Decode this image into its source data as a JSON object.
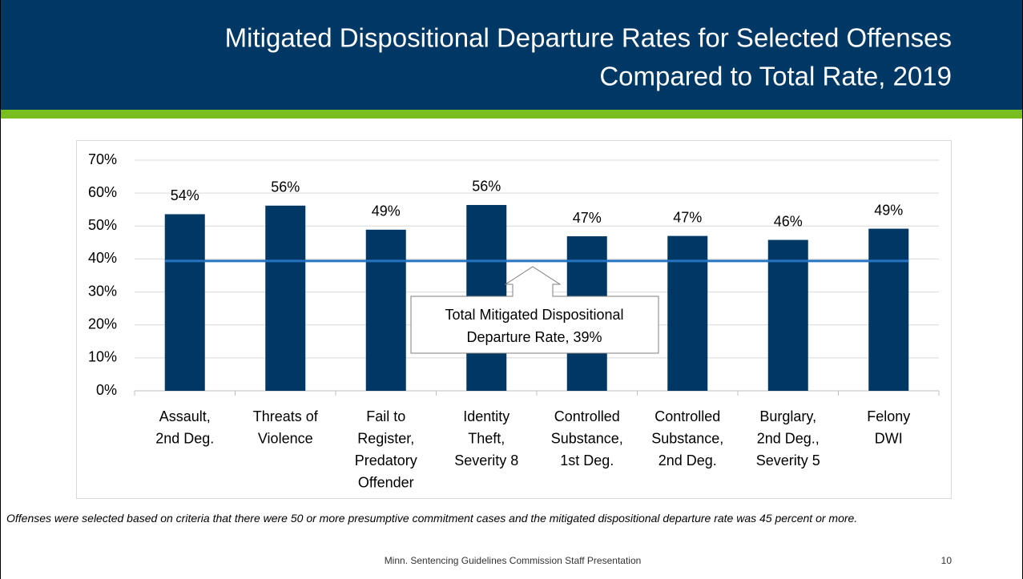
{
  "title_lines": [
    "Mitigated Dispositional Departure Rates for Selected Offenses",
    "Compared to Total Rate, 2019"
  ],
  "chart_data": {
    "type": "bar",
    "categories": [
      [
        "Assault,",
        "2nd Deg."
      ],
      [
        "Threats of",
        "Violence"
      ],
      [
        "Fail to",
        "Register,",
        "Predatory",
        "Offender"
      ],
      [
        "Identity",
        "Theft,",
        "Severity 8"
      ],
      [
        "Controlled",
        "Substance,",
        "1st Deg."
      ],
      [
        "Controlled",
        "Substance,",
        "2nd Deg."
      ],
      [
        "Burglary,",
        "2nd Deg.,",
        "Severity 5"
      ],
      [
        "Felony",
        "DWI"
      ]
    ],
    "values": [
      53.6,
      56.2,
      48.9,
      56.4,
      46.9,
      47.0,
      45.8,
      49.2
    ],
    "value_labels": [
      "54%",
      "56%",
      "49%",
      "56%",
      "47%",
      "47%",
      "46%",
      "49%"
    ],
    "color": "#003865",
    "ylim": [
      0,
      70
    ],
    "yticks": [
      {
        "value": 0,
        "label": "0%"
      },
      {
        "value": 10,
        "label": "10%"
      },
      {
        "value": 20,
        "label": "20%"
      },
      {
        "value": 30,
        "label": "30%"
      },
      {
        "value": 40,
        "label": "40%"
      },
      {
        "value": 50,
        "label": "50%"
      },
      {
        "value": 60,
        "label": "60%"
      },
      {
        "value": 70,
        "label": "70%"
      }
    ],
    "grid": true,
    "reference_line": {
      "value": 39.4,
      "color": "#2474c1",
      "annotation": [
        "Total Mitigated Dispositional",
        "Departure Rate, 39%"
      ]
    }
  },
  "footnote": "Offenses were selected based on criteria that there were 50 or more presumptive commitment cases and the mitigated dispositional departure rate was 45 percent or more.",
  "footer": "Minn. Sentencing Guidelines Commission Staff Presentation",
  "page_number": "10"
}
